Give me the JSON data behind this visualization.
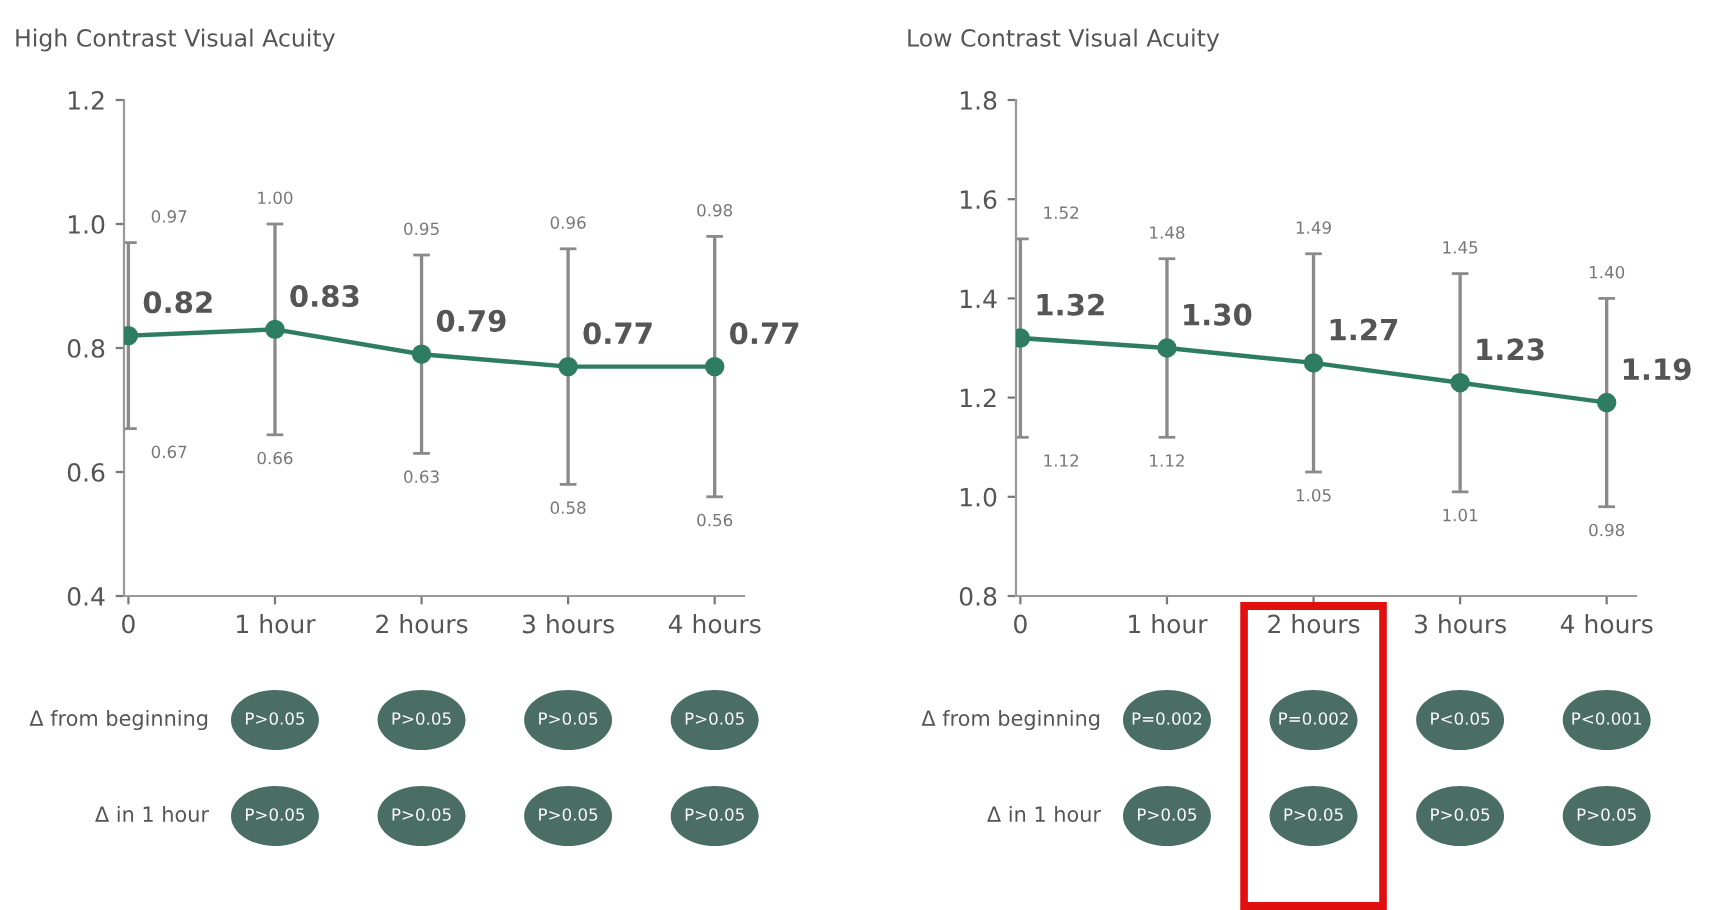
{
  "chart_data": [
    {
      "type": "line",
      "title": "High Contrast Visual Acuity",
      "categories": [
        "0",
        "1 hour",
        "2 hours",
        "3 hours",
        "4 hours"
      ],
      "series": [
        {
          "color": "#2e7d62",
          "values": [
            0.82,
            0.83,
            0.79,
            0.77,
            0.77
          ],
          "value_labels": [
            "0.82",
            "0.83",
            "0.79",
            "0.77",
            "0.77"
          ],
          "errors": [
            [
              0.67,
              0.97
            ],
            [
              0.66,
              1.0
            ],
            [
              0.63,
              0.95
            ],
            [
              0.58,
              0.96
            ],
            [
              0.56,
              0.98
            ]
          ]
        }
      ],
      "ylim": [
        0.4,
        1.2
      ],
      "yticks": [
        0.4,
        0.6,
        0.8,
        {
          "value": 1.0,
          "label": "1.0"
        },
        1.2
      ],
      "grid": false,
      "legend": false,
      "marker": "circle",
      "line_style": "solid",
      "annotations": [
        {
          "text": "0.97",
          "x": "0",
          "y": 0.97
        },
        {
          "text": "0.67",
          "x": "0",
          "y": 0.67
        },
        {
          "text": "1.00",
          "x": "1 hour",
          "y": 1.0
        },
        {
          "text": "0.66",
          "x": "1 hour",
          "y": 0.66
        },
        {
          "text": "0.95",
          "x": "2 hours",
          "y": 0.95
        },
        {
          "text": "0.63",
          "x": "2 hours",
          "y": 0.63
        },
        {
          "text": "0.96",
          "x": "3 hours",
          "y": 0.96
        },
        {
          "text": "0.58",
          "x": "3 hours",
          "y": 0.58
        },
        {
          "text": "0.98",
          "x": "4 hours",
          "y": 0.98
        },
        {
          "text": "0.56",
          "x": "4 hours",
          "y": 0.56
        },
        "Δ from beginning",
        "P>0.05",
        "P>0.05",
        "P>0.05",
        "P>0.05",
        "Δ in 1 hour",
        "P>0.05",
        "P>0.05",
        "P>0.05",
        "P>0.05"
      ]
    },
    {
      "type": "line",
      "title": "Low Contrast Visual Acuity",
      "categories": [
        "0",
        "1 hour",
        "2 hours",
        "3 hours",
        "4 hours"
      ],
      "series": [
        {
          "color": "#2e7d62",
          "values": [
            1.32,
            1.3,
            1.27,
            1.23,
            1.19
          ],
          "value_labels": [
            "1.32",
            "1.30",
            "1.27",
            "1.23",
            "1.19"
          ],
          "errors": [
            [
              1.12,
              1.52
            ],
            [
              1.12,
              1.48
            ],
            [
              1.05,
              1.49
            ],
            [
              1.01,
              1.45
            ],
            [
              0.98,
              1.4
            ]
          ]
        }
      ],
      "ylim": [
        0.8,
        1.8
      ],
      "yticks": [
        0.8,
        {
          "value": 1.0,
          "label": "1.0"
        },
        1.2,
        1.4,
        1.6,
        1.8
      ],
      "grid": false,
      "legend": false,
      "marker": "circle",
      "line_style": "solid",
      "annotations": [
        {
          "text": "1.52",
          "x": "0",
          "y": 1.52
        },
        {
          "text": "1.12",
          "x": "0",
          "y": 1.12
        },
        {
          "text": "1.48",
          "x": "1 hour",
          "y": 1.48
        },
        {
          "text": "1.12",
          "x": "1 hour",
          "y": 1.12
        },
        {
          "text": "1.49",
          "x": "2 hours",
          "y": 1.49
        },
        {
          "text": "1.05",
          "x": "2 hours",
          "y": 1.05
        },
        {
          "text": "1.45",
          "x": "3 hours",
          "y": 1.45
        },
        {
          "text": "1.01",
          "x": "3 hours",
          "y": 1.01
        },
        {
          "text": "1.40",
          "x": "4 hours",
          "y": 1.4
        },
        {
          "text": "0.98",
          "x": "4 hours",
          "y": 0.98
        },
        "Δ from beginning",
        "P=0.002",
        "P=0.002",
        "P<0.05",
        "P<0.001",
        "Δ in 1 hour",
        "P>0.05",
        "P>0.05",
        "P>0.05",
        "P>0.05"
      ]
    }
  ]
}
